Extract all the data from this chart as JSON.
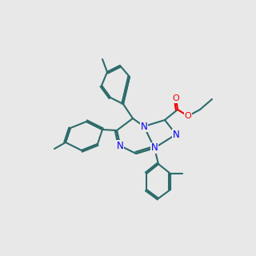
{
  "bg": "#e8e8e8",
  "bc": "#2d6b6b",
  "nc": "#0000ee",
  "oc": "#ee0000",
  "lw": 1.5,
  "fs": 8.5,
  "dbo": 0.018
}
